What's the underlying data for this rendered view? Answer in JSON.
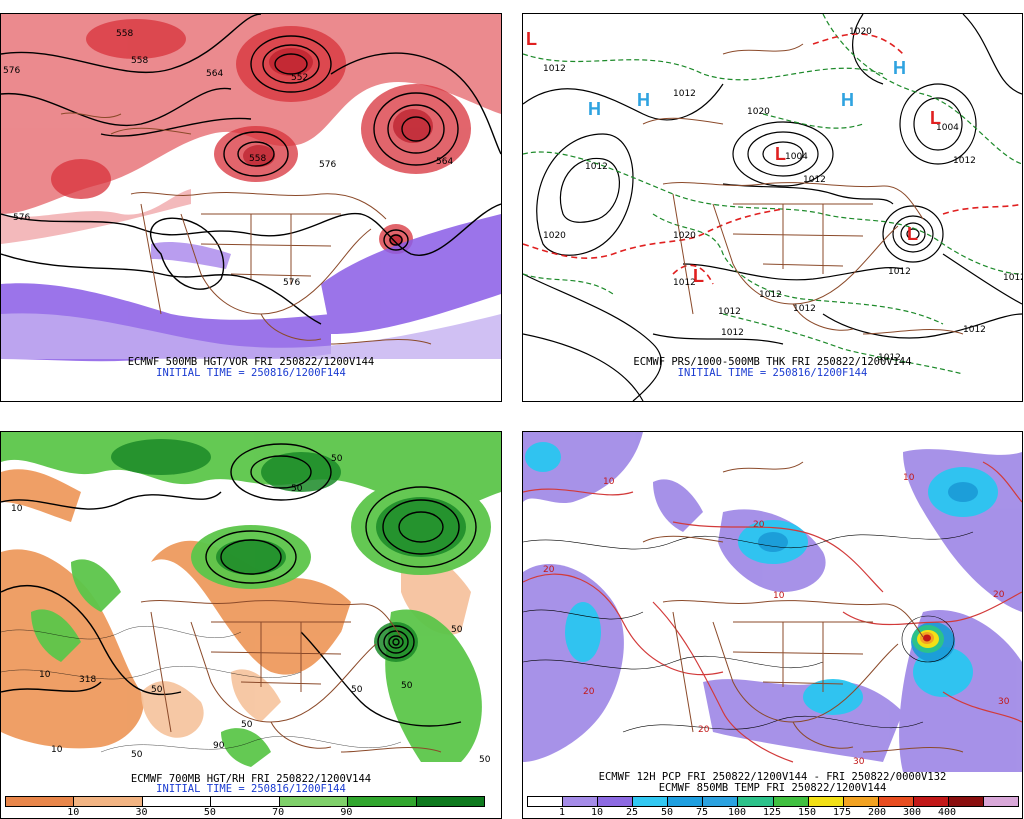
{
  "panels": [
    {
      "id": "p1",
      "title": "ECMWF 500MB HGT/VOR FRI 250822/1200V144",
      "init": "INITIAL TIME = 250816/1200F144",
      "labels": [
        "576",
        "558",
        "564",
        "552",
        "576",
        "564",
        "576",
        "558",
        "576",
        "558"
      ]
    },
    {
      "id": "p2",
      "title": "ECMWF PRS/1000-500MB THK FRI 250822/1200V144",
      "init": "INITIAL TIME = 250816/1200F144",
      "labels": [
        "1012",
        "1020",
        "1012",
        "1020",
        "1004",
        "1012",
        "1012",
        "1004",
        "1012",
        "1012",
        "1012",
        "1012",
        "1012",
        "1020",
        "1012",
        "1020",
        "1012",
        "1012",
        "1012",
        "1012"
      ],
      "symbols": [
        "L",
        "H",
        "H",
        "L",
        "L",
        "L",
        "H",
        "L",
        "H"
      ]
    },
    {
      "id": "p3",
      "title": "ECMWF 700MB HGT/RH FRI 250822/1200V144",
      "init": "INITIAL TIME = 250816/1200F144",
      "labels": [
        "10",
        "50",
        "50",
        "10",
        "318",
        "50",
        "50",
        "50",
        "50",
        "90",
        "50",
        "50",
        "10",
        "50"
      ],
      "colorbar": {
        "colors": [
          "#e8864a",
          "#f2b483",
          "#ffffff",
          "#ffffff",
          "#7fd06a",
          "#31a62e",
          "#0e7a1e"
        ],
        "ticks": [
          "10",
          "30",
          "50",
          "70",
          "90"
        ]
      }
    },
    {
      "id": "p4",
      "title": "ECMWF 12H PCP FRI 250822/1200V144 - FRI 250822/0000V132",
      "title2": "ECMWF 850MB TEMP FRI 250822/1200V144",
      "labels": [
        "20",
        "20",
        "20",
        "20",
        "10",
        "10",
        "20",
        "10",
        "30",
        "30"
      ],
      "colorbar": {
        "colors": [
          "#ffffff",
          "#a58ce8",
          "#8d6ae2",
          "#32c8f2",
          "#1e9fe0",
          "#2ba2e0",
          "#2cc28a",
          "#40c040",
          "#f2e016",
          "#f2a222",
          "#e84d20",
          "#c21818",
          "#8a0f0f",
          "#d9a8d9"
        ],
        "ticks": [
          "1",
          "10",
          "25",
          "50",
          "75",
          "100",
          "125",
          "150",
          "175",
          "200",
          "300",
          "400"
        ]
      }
    }
  ]
}
